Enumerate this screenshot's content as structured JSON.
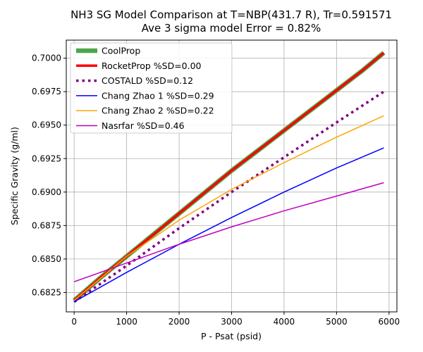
{
  "chart_data": {
    "type": "line",
    "title": "NH3 SG Model Comparison at T=NBP(431.7 R), Tr=0.591571",
    "subtitle": "Ave 3 sigma model Error = 0.82%",
    "xlabel": "P - Psat (psid)",
    "ylabel": "Specific Gravity (g/ml)",
    "xlim": [
      -150,
      6150
    ],
    "ylim": [
      0.68105,
      0.70135
    ],
    "xticks": [
      0,
      1000,
      2000,
      3000,
      4000,
      5000,
      6000
    ],
    "yticks": [
      0.6825,
      0.685,
      0.6875,
      0.69,
      0.6925,
      0.695,
      0.6975,
      0.7
    ],
    "xtick_labels": [
      "0",
      "1000",
      "2000",
      "3000",
      "4000",
      "5000",
      "6000"
    ],
    "ytick_labels": [
      "0.6825",
      "0.6850",
      "0.6875",
      "0.6900",
      "0.6925",
      "0.6950",
      "0.6975",
      "0.7000"
    ],
    "grid": true,
    "legend_position": "upper-left",
    "series": [
      {
        "name": "CoolProp",
        "color": "#4ca64c",
        "style": "solid-thick",
        "x": [
          0,
          500,
          1000,
          1500,
          2000,
          2500,
          3000,
          3500,
          4000,
          4500,
          5000,
          5500,
          5900
        ],
        "y": [
          0.6819,
          0.6836,
          0.6852,
          0.6868,
          0.6884,
          0.69,
          0.6916,
          0.6931,
          0.6946,
          0.6961,
          0.6976,
          0.6991,
          0.7004
        ]
      },
      {
        "name": "RocketProp %SD=0.00",
        "color": "#ff0000",
        "style": "solid",
        "x": [
          0,
          500,
          1000,
          1500,
          2000,
          2500,
          3000,
          3500,
          4000,
          4500,
          5000,
          5500,
          5900
        ],
        "y": [
          0.6819,
          0.6836,
          0.6852,
          0.6868,
          0.6884,
          0.69,
          0.6916,
          0.6931,
          0.6946,
          0.6961,
          0.6976,
          0.6991,
          0.7004
        ]
      },
      {
        "name": "COSTALD %SD=0.12",
        "color": "#800080",
        "style": "dotted",
        "x": [
          0,
          1000,
          2000,
          3000,
          4000,
          5000,
          5900
        ],
        "y": [
          0.6818,
          0.6845,
          0.6873,
          0.69,
          0.6926,
          0.6952,
          0.6975
        ]
      },
      {
        "name": "Chang Zhao 1 %SD=0.29",
        "color": "#0000ff",
        "style": "solid",
        "x": [
          0,
          1000,
          2000,
          3000,
          4000,
          5000,
          5900
        ],
        "y": [
          0.6818,
          0.684,
          0.6861,
          0.6881,
          0.69,
          0.6918,
          0.6933
        ]
      },
      {
        "name": "Chang Zhao 2 %SD=0.22",
        "color": "#ffa500",
        "style": "solid",
        "x": [
          0,
          1000,
          2000,
          3000,
          4000,
          5000,
          5900
        ],
        "y": [
          0.6819,
          0.6852,
          0.6879,
          0.6902,
          0.6922,
          0.6941,
          0.6957
        ]
      },
      {
        "name": "Nasrfar %SD=0.46",
        "color": "#bf00bf",
        "style": "solid",
        "x": [
          0,
          1000,
          2000,
          3000,
          4000,
          5000,
          5900
        ],
        "y": [
          0.6833,
          0.6847,
          0.6861,
          0.6874,
          0.6886,
          0.6897,
          0.6907
        ]
      }
    ]
  }
}
